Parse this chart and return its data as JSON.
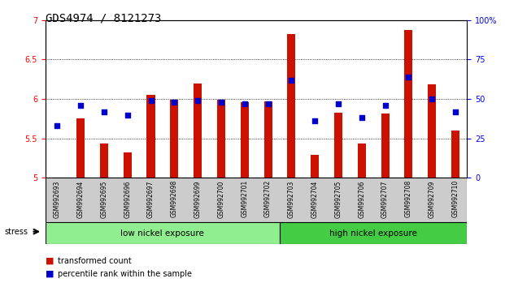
{
  "title": "GDS4974 / 8121273",
  "categories": [
    "GSM992693",
    "GSM992694",
    "GSM992695",
    "GSM992696",
    "GSM992697",
    "GSM992698",
    "GSM992699",
    "GSM992700",
    "GSM992701",
    "GSM992702",
    "GSM992703",
    "GSM992704",
    "GSM992705",
    "GSM992706",
    "GSM992707",
    "GSM992708",
    "GSM992709",
    "GSM992710"
  ],
  "red_bars": [
    5.01,
    5.75,
    5.44,
    5.32,
    6.05,
    5.99,
    6.2,
    5.99,
    5.96,
    5.97,
    6.82,
    5.29,
    5.83,
    5.44,
    5.82,
    6.87,
    6.19,
    5.6
  ],
  "blue_squares": [
    33,
    46,
    42,
    40,
    49,
    48,
    49,
    48,
    47,
    47,
    62,
    36,
    47,
    38,
    46,
    64,
    50,
    42
  ],
  "ylim_left": [
    5.0,
    7.0
  ],
  "ylim_right": [
    0,
    100
  ],
  "yticks_left": [
    5.0,
    5.5,
    6.0,
    6.5,
    7.0
  ],
  "yticks_right": [
    0,
    25,
    50,
    75,
    100
  ],
  "grid_values": [
    5.5,
    6.0,
    6.5
  ],
  "bar_color": "#cc1100",
  "square_color": "#0000cc",
  "bar_bottom": 5.0,
  "group1_label": "low nickel exposure",
  "group2_label": "high nickel exposure",
  "group1_count": 10,
  "group2_count": 8,
  "stress_label": "stress",
  "legend_items": [
    "transformed count",
    "percentile rank within the sample"
  ],
  "xtick_bg": "#cccccc",
  "group1_color": "#90ee90",
  "group2_color": "#44cc44"
}
